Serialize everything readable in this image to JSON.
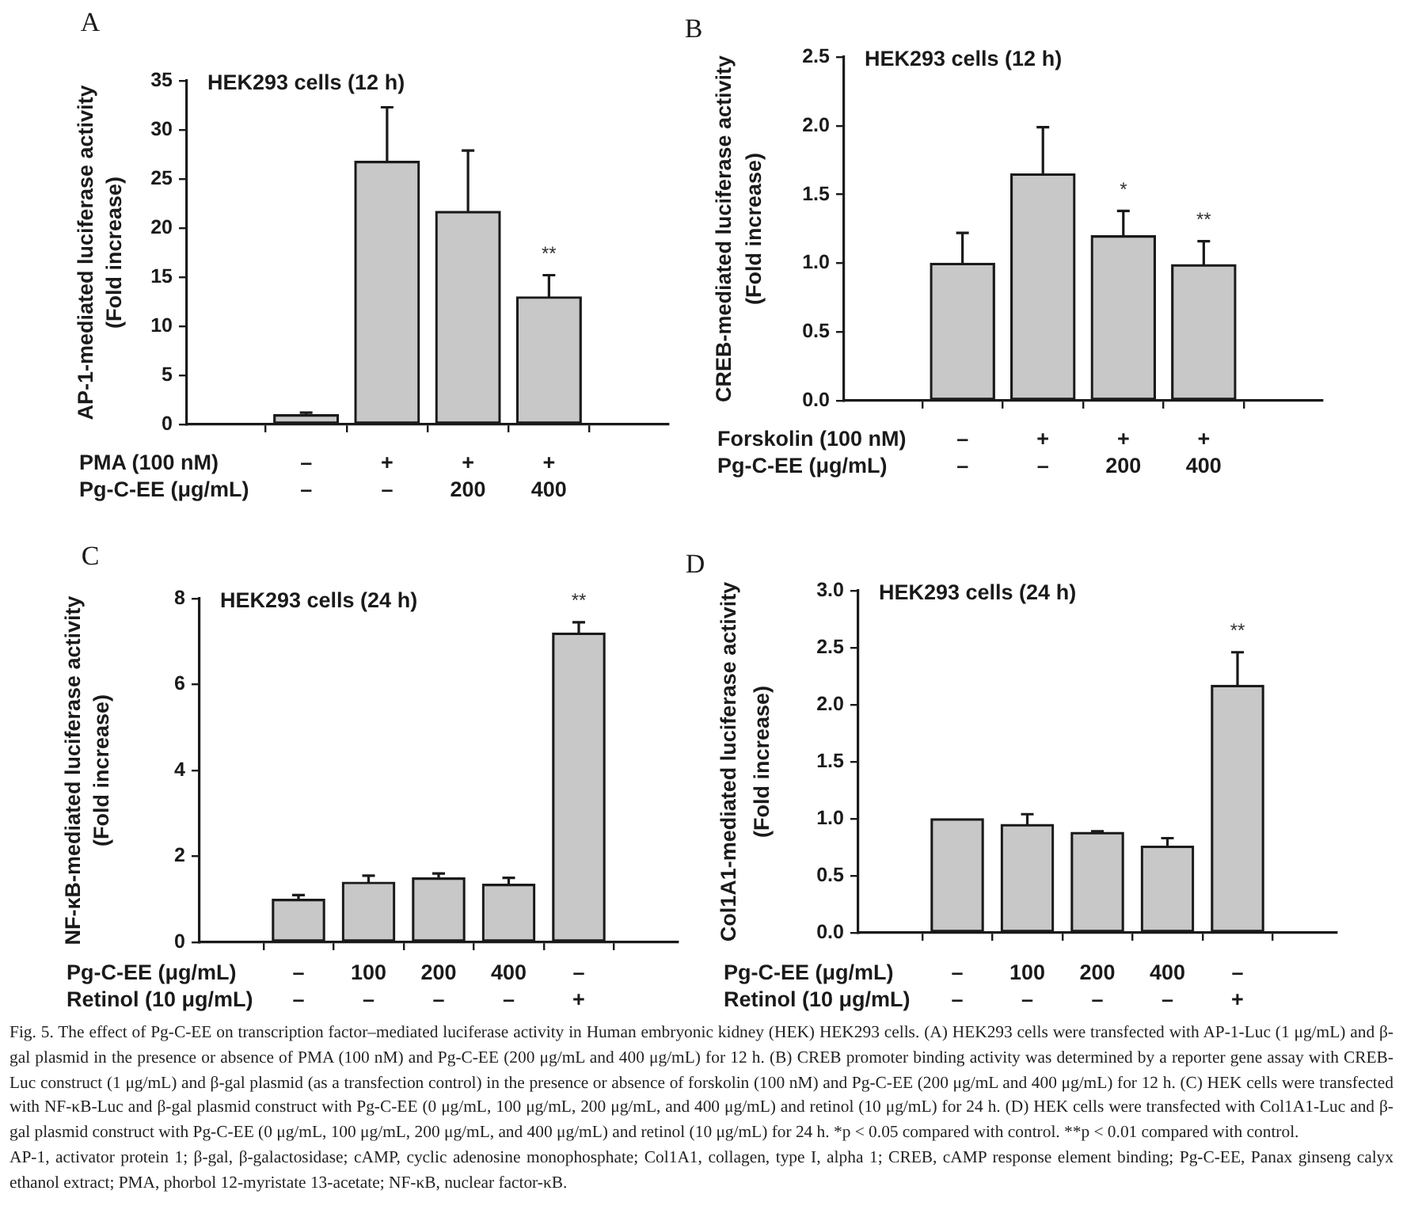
{
  "chart_data": [
    {
      "type": "bar",
      "title": "A",
      "ylabel": "AP-1-mediated luciferase activity\n(Fold increase)",
      "xlabel": "PMA (100 nM)\nPg-C-EE (μg/mL)",
      "categories": [
        "–\n–",
        "+\n–",
        "+\n200",
        "+\n400"
      ],
      "values": [
        1.0,
        26.8,
        21.7,
        13.0
      ],
      "errors": [
        0.2,
        5.5,
        6.2,
        2.2
      ],
      "value_labels": [
        null,
        null,
        null,
        "**"
      ],
      "color": "#c8c8c8",
      "ylim": [
        0,
        35
      ],
      "yticks": [
        0,
        5,
        10,
        15,
        20,
        25,
        30,
        35
      ],
      "annotations": [
        "HEK293 cells (12 h)"
      ]
    },
    {
      "type": "bar",
      "title": "B",
      "ylabel": "CREB-mediated luciferase activity\n(Fold increase)",
      "xlabel": "Forskolin (100 nM)\nPg-C-EE (μg/mL)",
      "categories": [
        "–\n–",
        "+\n–",
        "+\n200",
        "+\n400"
      ],
      "values": [
        1.0,
        1.65,
        1.2,
        0.99
      ],
      "errors": [
        0.22,
        0.34,
        0.18,
        0.17
      ],
      "value_labels": [
        null,
        null,
        "*",
        "**"
      ],
      "color": "#c8c8c8",
      "ylim": [
        0,
        2.5
      ],
      "yticks": [
        {
          "value": 0,
          "label": "0.0"
        },
        0.5,
        {
          "value": 1,
          "label": "1.0"
        },
        1.5,
        {
          "value": 2,
          "label": "2.0"
        },
        2.5
      ],
      "annotations": [
        "HEK293 cells (12 h)"
      ]
    },
    {
      "type": "bar",
      "title": "C",
      "ylabel": "NF-κB-mediated luciferase activity\n(Fold increase)",
      "xlabel": "Pg-C-EE (μg/mL)\nRetinol (10 μg/mL)",
      "categories": [
        "–\n–",
        "100\n–",
        "200\n–",
        "400\n–",
        "–\n+"
      ],
      "values": [
        1.0,
        1.4,
        1.5,
        1.35,
        7.2
      ],
      "errors": [
        0.1,
        0.15,
        0.1,
        0.15,
        0.25
      ],
      "value_labels": [
        null,
        null,
        null,
        null,
        "**"
      ],
      "color": "#c8c8c8",
      "ylim": [
        0,
        8
      ],
      "yticks": [
        0,
        2,
        4,
        6,
        8
      ],
      "annotations": [
        "HEK293 cells (24 h)"
      ]
    },
    {
      "type": "bar",
      "title": "D",
      "ylabel": "Col1A1-mediated luciferase activity\n(Fold increase)",
      "xlabel": "Pg-C-EE (μg/mL)\nRetinol (10 μg/mL)",
      "categories": [
        "–\n–",
        "100\n–",
        "200\n–",
        "400\n–",
        "–\n+"
      ],
      "values": [
        1.0,
        0.95,
        0.88,
        0.76,
        2.17
      ],
      "errors": [
        null,
        0.09,
        0.01,
        0.07,
        0.29
      ],
      "value_labels": [
        null,
        null,
        null,
        null,
        "**"
      ],
      "color": "#c8c8c8",
      "ylim": [
        0,
        3
      ],
      "yticks": [
        {
          "value": 0,
          "label": "0.0"
        },
        0.5,
        {
          "value": 1,
          "label": "1.0"
        },
        1.5,
        {
          "value": 2,
          "label": "2.0"
        },
        2.5,
        {
          "value": 3,
          "label": "3.0"
        }
      ],
      "annotations": [
        "HEK293 cells (24 h)"
      ]
    },
    {
      "type": "other",
      "annotations": [
        "Fig. 5. The effect of Pg-C-EE on transcription factor–mediated luciferase activity in Human embryonic kidney (HEK) HEK293 cells. (A) HEK293 cells were transfected with AP-1-Luc (1 μg/mL) and β-gal plasmid in the presence or absence of PMA (100 nM) and Pg-C-EE (200 μg/mL and 400 μg/mL) for 12 h. (B) CREB promoter binding activity was determined by a reporter gene assay with CREB-Luc construct (1 μg/mL) and β-gal plasmid (as a transfection control) in the presence or absence of forskolin (100 nM) and Pg-C-EE (200 μg/mL and 400 μg/mL) for 12 h. (C) HEK cells were transfected with NF-κB-Luc and β-gal plasmid construct with Pg-C-EE (0 μg/mL, 100 μg/mL, 200 μg/mL, and 400 μg/mL) and retinol (10 μg/mL) for 24 h. (D) HEK cells were transfected with Col1A1-Luc and β-gal plasmid construct with Pg-C-EE (0 μg/mL, 100 μg/mL, 200 μg/mL, and 400 μg/mL) and retinol (10 μg/mL) for 24 h. *p < 0.05 compared with control. **p < 0.01 compared with control.",
        "AP-1, activator protein 1; β-gal, β-galactosidase; cAMP, cyclic adenosine monophosphate; Col1A1, collagen, type I, alpha 1; CREB, cAMP response element binding; Pg-C-EE, Panax ginseng calyx ethanol extract; PMA, phorbol 12-myristate 13-acetate; NF-κB, nuclear factor-κB."
      ]
    }
  ]
}
